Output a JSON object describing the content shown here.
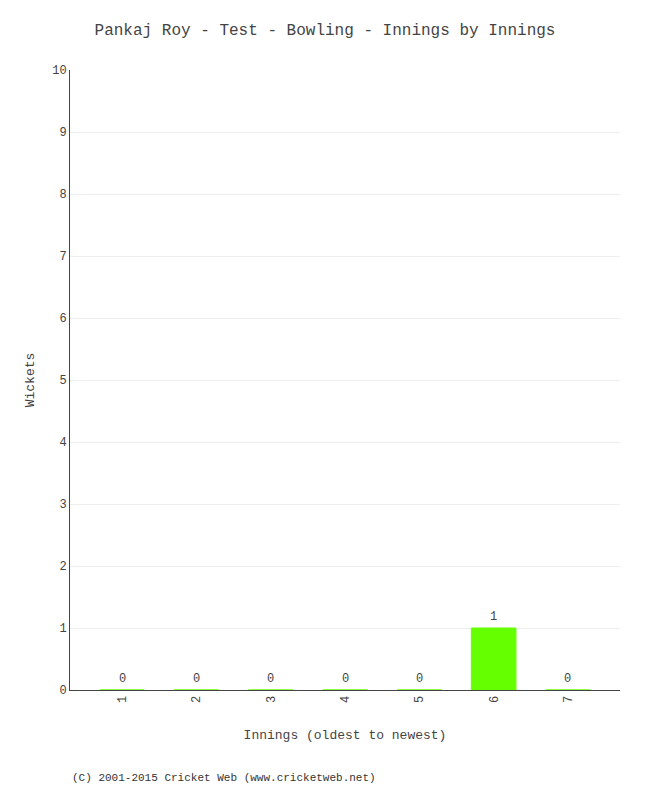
{
  "chart_data": {
    "type": "bar",
    "title": "Pankaj Roy - Test - Bowling - Innings by Innings",
    "xlabel": "Innings (oldest to newest)",
    "ylabel": "Wickets",
    "x": [
      1,
      2,
      3,
      4,
      5,
      6,
      7
    ],
    "values": [
      0,
      0,
      0,
      0,
      0,
      1,
      0
    ],
    "color": "#66ff00",
    "xlim": [
      0.3,
      7.7
    ],
    "xticks": [
      1,
      2,
      3,
      4,
      5,
      6,
      7
    ],
    "ylim": [
      0,
      10
    ],
    "yticks": [
      0,
      1,
      2,
      3,
      4,
      5,
      6,
      7,
      8,
      9,
      10
    ],
    "grid": true,
    "data_labels": true,
    "annotations": [
      "(C) 2001-2015 Cricket Web (www.cricketweb.net)"
    ]
  }
}
